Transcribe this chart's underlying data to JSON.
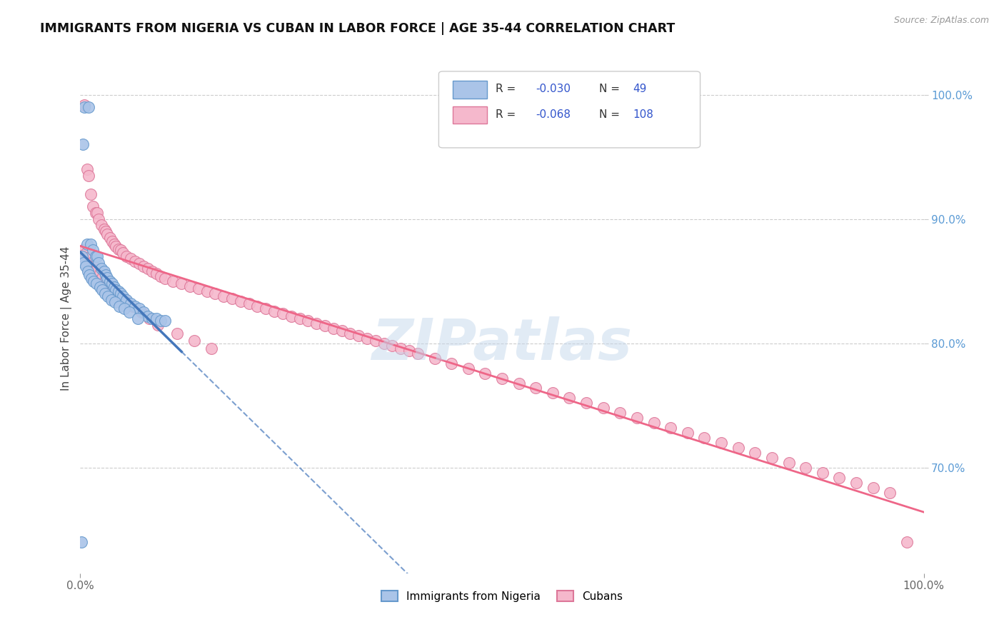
{
  "title": "IMMIGRANTS FROM NIGERIA VS CUBAN IN LABOR FORCE | AGE 35-44 CORRELATION CHART",
  "source": "Source: ZipAtlas.com",
  "ylabel": "In Labor Force | Age 35-44",
  "xlim": [
    0.0,
    1.0
  ],
  "ylim": [
    0.615,
    1.025
  ],
  "yticks": [
    0.7,
    0.8,
    0.9,
    1.0
  ],
  "ytick_labels": [
    "70.0%",
    "80.0%",
    "90.0%",
    "100.0%"
  ],
  "nigeria_color": "#aac4e8",
  "nigeria_edge": "#6699cc",
  "cuban_color": "#f5b8cc",
  "cuban_edge": "#dd7799",
  "trend_nigeria_color": "#4477bb",
  "trend_cuban_color": "#ee6688",
  "watermark": "ZIPatlas",
  "R_nigeria": -0.03,
  "N_nigeria": 49,
  "R_cuban": -0.068,
  "N_cuban": 108,
  "nigeria_x": [
    0.005,
    0.01,
    0.003,
    0.008,
    0.012,
    0.015,
    0.018,
    0.02,
    0.022,
    0.025,
    0.028,
    0.03,
    0.032,
    0.035,
    0.038,
    0.04,
    0.042,
    0.045,
    0.048,
    0.05,
    0.055,
    0.06,
    0.065,
    0.07,
    0.075,
    0.08,
    0.085,
    0.09,
    0.095,
    0.1,
    0.002,
    0.004,
    0.006,
    0.009,
    0.011,
    0.013,
    0.016,
    0.019,
    0.023,
    0.026,
    0.029,
    0.033,
    0.037,
    0.041,
    0.046,
    0.052,
    0.058,
    0.068,
    0.001
  ],
  "nigeria_y": [
    0.99,
    0.99,
    0.96,
    0.88,
    0.88,
    0.875,
    0.87,
    0.87,
    0.865,
    0.86,
    0.858,
    0.855,
    0.853,
    0.85,
    0.848,
    0.845,
    0.843,
    0.842,
    0.84,
    0.838,
    0.835,
    0.832,
    0.83,
    0.828,
    0.825,
    0.822,
    0.82,
    0.82,
    0.818,
    0.818,
    0.87,
    0.865,
    0.862,
    0.858,
    0.855,
    0.852,
    0.85,
    0.848,
    0.845,
    0.843,
    0.84,
    0.838,
    0.835,
    0.833,
    0.83,
    0.828,
    0.825,
    0.82,
    0.64
  ],
  "cuban_x": [
    0.005,
    0.008,
    0.01,
    0.012,
    0.015,
    0.018,
    0.02,
    0.022,
    0.025,
    0.028,
    0.03,
    0.032,
    0.035,
    0.038,
    0.04,
    0.042,
    0.045,
    0.048,
    0.05,
    0.055,
    0.06,
    0.065,
    0.07,
    0.075,
    0.08,
    0.085,
    0.09,
    0.095,
    0.1,
    0.11,
    0.12,
    0.13,
    0.14,
    0.15,
    0.16,
    0.17,
    0.18,
    0.19,
    0.2,
    0.21,
    0.22,
    0.23,
    0.24,
    0.25,
    0.26,
    0.27,
    0.28,
    0.29,
    0.3,
    0.31,
    0.32,
    0.33,
    0.34,
    0.35,
    0.36,
    0.37,
    0.38,
    0.39,
    0.4,
    0.42,
    0.44,
    0.46,
    0.48,
    0.5,
    0.52,
    0.54,
    0.56,
    0.58,
    0.6,
    0.62,
    0.64,
    0.66,
    0.68,
    0.7,
    0.72,
    0.74,
    0.76,
    0.78,
    0.8,
    0.82,
    0.84,
    0.86,
    0.88,
    0.9,
    0.92,
    0.94,
    0.96,
    0.003,
    0.006,
    0.009,
    0.013,
    0.016,
    0.019,
    0.023,
    0.026,
    0.029,
    0.033,
    0.037,
    0.043,
    0.052,
    0.062,
    0.072,
    0.082,
    0.092,
    0.115,
    0.135,
    0.155,
    0.98
  ],
  "cuban_y": [
    0.992,
    0.94,
    0.935,
    0.92,
    0.91,
    0.905,
    0.905,
    0.9,
    0.895,
    0.892,
    0.89,
    0.888,
    0.885,
    0.882,
    0.88,
    0.878,
    0.876,
    0.875,
    0.873,
    0.87,
    0.868,
    0.866,
    0.864,
    0.862,
    0.86,
    0.858,
    0.856,
    0.854,
    0.852,
    0.85,
    0.848,
    0.846,
    0.844,
    0.842,
    0.84,
    0.838,
    0.836,
    0.834,
    0.832,
    0.83,
    0.828,
    0.826,
    0.824,
    0.822,
    0.82,
    0.818,
    0.816,
    0.814,
    0.812,
    0.81,
    0.808,
    0.806,
    0.804,
    0.802,
    0.8,
    0.798,
    0.796,
    0.794,
    0.792,
    0.788,
    0.784,
    0.78,
    0.776,
    0.772,
    0.768,
    0.764,
    0.76,
    0.756,
    0.752,
    0.748,
    0.744,
    0.74,
    0.736,
    0.732,
    0.728,
    0.724,
    0.72,
    0.716,
    0.712,
    0.708,
    0.704,
    0.7,
    0.696,
    0.692,
    0.688,
    0.684,
    0.68,
    0.875,
    0.872,
    0.869,
    0.865,
    0.862,
    0.859,
    0.856,
    0.853,
    0.85,
    0.847,
    0.844,
    0.84,
    0.836,
    0.83,
    0.825,
    0.82,
    0.815,
    0.808,
    0.802,
    0.796,
    0.64
  ]
}
